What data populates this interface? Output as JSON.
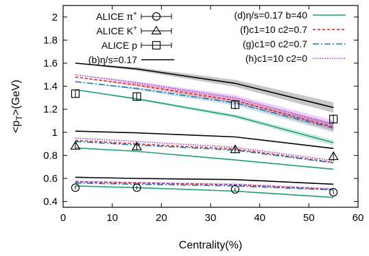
{
  "chart_data": {
    "type": "line",
    "xlabel": "Centrality(%)",
    "ylabel": "<p_T>(GeV)",
    "xlim": [
      0,
      60
    ],
    "ylim": [
      0.35,
      2.1
    ],
    "x_ticks": [
      0,
      10,
      20,
      30,
      40,
      50,
      60
    ],
    "x_tick_labels": [
      "0",
      "10",
      "20",
      "30",
      "40",
      "50",
      "60"
    ],
    "y_ticks": [
      0.4,
      0.6,
      0.8,
      1.0,
      1.2,
      1.4,
      1.6,
      1.8,
      2.0
    ],
    "y_tick_labels": [
      "0.4",
      "0.6",
      "0.8",
      "1",
      "1.2",
      "1.4",
      "1.6",
      "1.8",
      "2"
    ],
    "grid": false,
    "x": [
      2.5,
      15,
      35,
      55
    ],
    "data_series": [
      {
        "id": "alice-pi",
        "name": "ALICE π+",
        "kind": "points",
        "marker": "circle",
        "color": "#000000",
        "values": [
          0.52,
          0.52,
          0.505,
          0.48
        ],
        "errors": [
          0.015,
          0.015,
          0.015,
          0.015
        ]
      },
      {
        "id": "alice-k",
        "name": "ALICE K+",
        "kind": "points",
        "marker": "triangle",
        "color": "#000000",
        "values": [
          0.88,
          0.875,
          0.85,
          0.79
        ],
        "errors": [
          0.03,
          0.03,
          0.03,
          0.04
        ]
      },
      {
        "id": "alice-p",
        "name": "ALICE p",
        "kind": "points",
        "marker": "square",
        "color": "#000000",
        "values": [
          1.335,
          1.31,
          1.24,
          1.115
        ],
        "errors": [
          0.03,
          0.03,
          0.04,
          0.04
        ]
      }
    ],
    "curve_series": [
      {
        "id": "b",
        "name": "(b)η/s=0.17",
        "color": "#000000",
        "dash": "",
        "pi": [
          0.61,
          0.6,
          0.59,
          0.55
        ],
        "k": [
          1.01,
          0.995,
          0.96,
          0.86
        ],
        "p": [
          1.6,
          1.55,
          1.425,
          1.215
        ],
        "band": [
          0,
          0,
          0,
          0,
          0.025,
          0.045
        ]
      },
      {
        "id": "d",
        "name": "(d)η/s=0.17 b=40",
        "color": "#1a9e77",
        "dash": "",
        "pi": [
          0.535,
          0.52,
          0.49,
          0.435
        ],
        "k": [
          0.865,
          0.835,
          0.76,
          0.68
        ],
        "p": [
          1.37,
          1.29,
          1.14,
          0.91
        ],
        "band": [
          0,
          0,
          0,
          0,
          0,
          0.025
        ]
      },
      {
        "id": "f",
        "name": "(f)c1=10 c2=0.7",
        "color": "#e41a1c",
        "dash": "4,3",
        "pi": [
          0.57,
          0.56,
          0.545,
          0.505
        ],
        "k": [
          0.93,
          0.9,
          0.855,
          0.74
        ],
        "p": [
          1.48,
          1.41,
          1.275,
          1.045
        ],
        "band": [
          0,
          0,
          0,
          0,
          0.02,
          0.035
        ]
      },
      {
        "id": "g",
        "name": "(g)c1=0 c2=0.7",
        "color": "#1f78b4",
        "dash": "9,3,2,3",
        "pi": [
          0.56,
          0.55,
          0.535,
          0.5
        ],
        "k": [
          0.92,
          0.89,
          0.845,
          0.735
        ],
        "p": [
          1.44,
          1.38,
          1.255,
          1.035
        ],
        "band": [
          0,
          0,
          0,
          0,
          0.02,
          0.035
        ]
      },
      {
        "id": "h",
        "name": "(h)c1=10 c2=0",
        "color": "#9b30d9",
        "dash": "1.5,2",
        "pi": [
          0.575,
          0.565,
          0.55,
          0.51
        ],
        "k": [
          0.95,
          0.92,
          0.87,
          0.755
        ],
        "p": [
          1.5,
          1.43,
          1.3,
          1.07
        ],
        "band": [
          0,
          0,
          0,
          0,
          0.02,
          0.035
        ]
      }
    ],
    "legend_left": [
      {
        "label": "ALICE π",
        "sup": "+",
        "marker": "circle"
      },
      {
        "label": "ALICE K",
        "sup": "+",
        "marker": "triangle"
      },
      {
        "label": "ALICE p",
        "sup": "",
        "marker": "square"
      },
      {
        "label": "(b)η/s=0.17",
        "sup": "",
        "marker": "line",
        "color": "#000000",
        "dash": ""
      }
    ],
    "legend_right": [
      {
        "label": "(d)η/s=0.17 b=40",
        "color": "#1a9e77",
        "dash": ""
      },
      {
        "label": "(f)c1=10 c2=0.7",
        "color": "#e41a1c",
        "dash": "4,3"
      },
      {
        "label": "(g)c1=0 c2=0.7",
        "color": "#1f78b4",
        "dash": "9,3,2,3"
      },
      {
        "label": "(h)c1=10 c2=0",
        "color": "#9b30d9",
        "dash": "1.5,2"
      }
    ],
    "legend_placement": "top"
  }
}
